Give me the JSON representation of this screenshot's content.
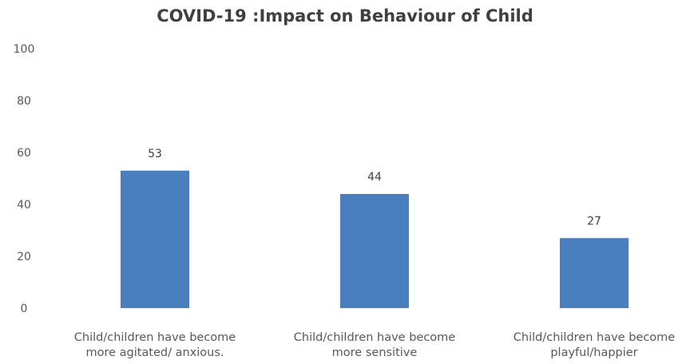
{
  "chart_data": {
    "type": "bar",
    "title": "COVID-19 :Impact on Behaviour of Child",
    "categories": [
      [
        "Child/children have become",
        "more agitated/ anxious."
      ],
      [
        "Child/children have become",
        "more sensitive"
      ],
      [
        "Child/children have become",
        "playful/happier"
      ]
    ],
    "values": [
      53,
      44,
      27
    ],
    "ylim": [
      0,
      100
    ],
    "yticks": [
      0,
      20,
      40,
      60,
      80,
      100
    ],
    "xlabel": "",
    "ylabel": "",
    "grid": false,
    "bar_color": "#4a7ebf",
    "show_data_labels": true
  }
}
